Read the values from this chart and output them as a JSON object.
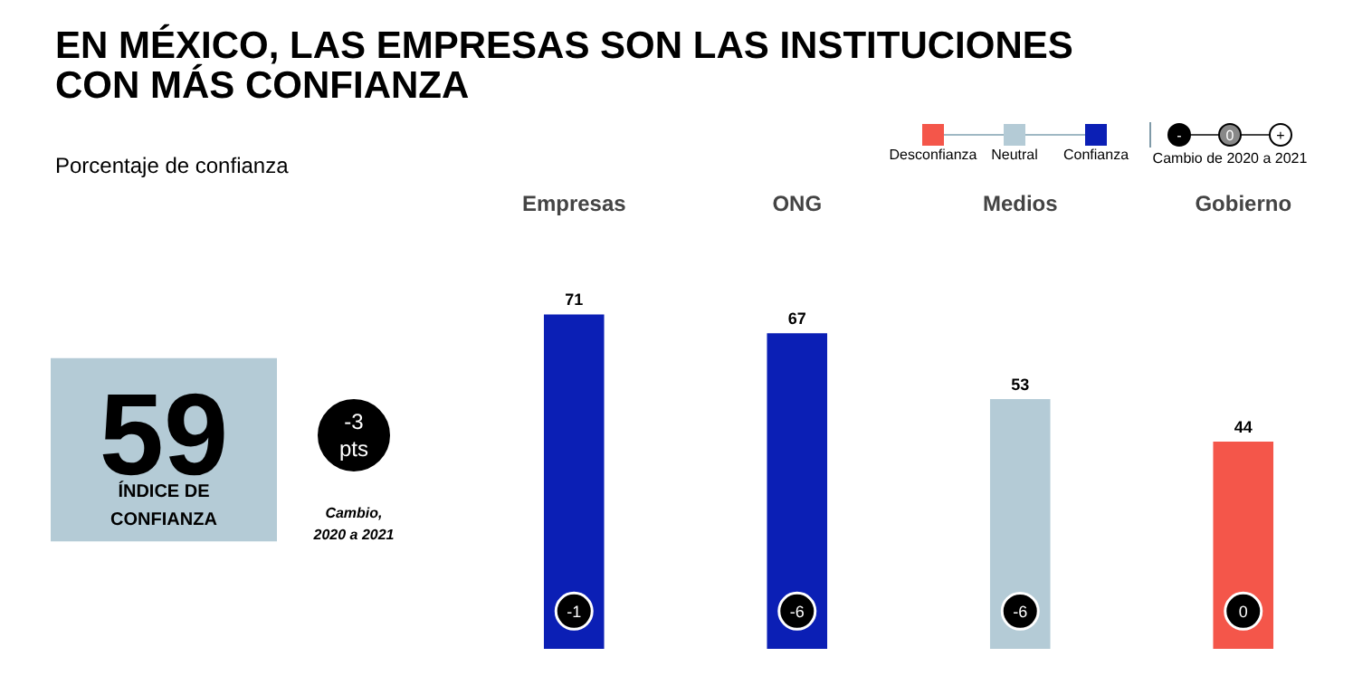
{
  "chart_data": [
    {
      "type": "other",
      "title": "EN MÉXICO, LAS EMPRESAS SON LAS INSTITUCIONES\nCON MÁS CONFIANZA",
      "subtitle": "Porcentaje de confianza",
      "annotations": [
        "59",
        "ÍNDICE DE CONFIANZA",
        "-3 pts",
        "Cambio, 2020 a 2021"
      ]
    },
    {
      "type": "bar",
      "categories": [
        "Empresas",
        "ONG",
        "Medios",
        "Gobierno"
      ],
      "tick_labels": "x",
      "data_labels": true,
      "legend": "top right",
      "grid": false,
      "series": [
        {
          "name": "Desconfianza",
          "color": "#f4564a",
          "values": [
            null,
            null,
            null,
            44
          ]
        },
        {
          "name": "Neutral",
          "color": "#b4cbd6",
          "values": [
            null,
            null,
            53,
            null
          ]
        },
        {
          "name": "Confianza",
          "color": "#0b1fb5",
          "values": [
            71,
            67,
            null,
            null
          ]
        }
      ],
      "annotations": [
        "Cambio de 2020 a 2021",
        "-",
        "0",
        "+",
        {
          "text": "-1",
          "x": "Empresas",
          "y": 8
        },
        {
          "text": "-6",
          "x": "ONG",
          "y": 8
        },
        {
          "text": "-6",
          "x": "Medios",
          "y": 8
        },
        {
          "text": "0",
          "x": "Gobierno",
          "y": 8
        }
      ]
    }
  ]
}
